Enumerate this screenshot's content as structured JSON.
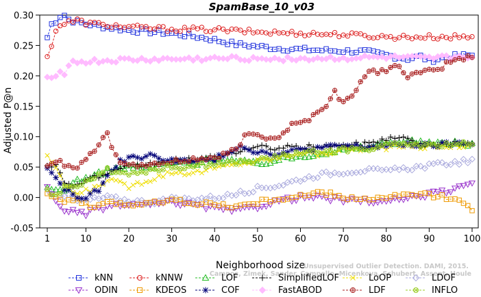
{
  "chart_data": {
    "type": "line",
    "title": "SpamBase_10_v03",
    "xlabel": "Neighborhood size",
    "ylabel": "Adjusted P@n",
    "xlim": [
      1,
      100
    ],
    "ylim": [
      -0.05,
      0.3
    ],
    "xticks": [
      "1",
      "10",
      "20",
      "30",
      "40",
      "50",
      "60",
      "70",
      "80",
      "90",
      "100"
    ],
    "yticks": [
      "-0.05",
      "0.00",
      "0.05",
      "0.10",
      "0.15",
      "0.20",
      "0.25",
      "0.30"
    ],
    "grid": false,
    "legend_position": "bottom",
    "watermark": "Campos, Zimek, Sander, Campello, Micenkova, Schubert, Assent, Houle",
    "watermark_title": "Unsupervised Outlier Detection. DAMI, 2015.",
    "series": [
      {
        "name": "kNN",
        "color": "#2233dd",
        "marker": "square",
        "anchors": [
          [
            1,
            0.263
          ],
          [
            2,
            0.285
          ],
          [
            3,
            0.29
          ],
          [
            4,
            0.298
          ],
          [
            5,
            0.3
          ],
          [
            6,
            0.293
          ],
          [
            8,
            0.288
          ],
          [
            12,
            0.283
          ],
          [
            20,
            0.275
          ],
          [
            30,
            0.27
          ],
          [
            38,
            0.262
          ],
          [
            45,
            0.252
          ],
          [
            55,
            0.245
          ],
          [
            65,
            0.242
          ],
          [
            75,
            0.24
          ],
          [
            85,
            0.228
          ],
          [
            88,
            0.232
          ],
          [
            90,
            0.225
          ],
          [
            95,
            0.232
          ],
          [
            100,
            0.234
          ]
        ]
      },
      {
        "name": "kNNW",
        "color": "#dd2222",
        "marker": "circle",
        "anchors": [
          [
            1,
            0.23
          ],
          [
            2,
            0.252
          ],
          [
            3,
            0.275
          ],
          [
            4,
            0.283
          ],
          [
            6,
            0.288
          ],
          [
            8,
            0.291
          ],
          [
            10,
            0.287
          ],
          [
            20,
            0.28
          ],
          [
            30,
            0.277
          ],
          [
            40,
            0.276
          ],
          [
            50,
            0.272
          ],
          [
            60,
            0.27
          ],
          [
            70,
            0.268
          ],
          [
            80,
            0.264
          ],
          [
            90,
            0.264
          ],
          [
            100,
            0.264
          ]
        ]
      },
      {
        "name": "LOF",
        "color": "#22bb22",
        "marker": "triangle-up",
        "anchors": [
          [
            1,
            0.013
          ],
          [
            5,
            0.012
          ],
          [
            8,
            0.028
          ],
          [
            12,
            0.035
          ],
          [
            15,
            0.045
          ],
          [
            20,
            0.05
          ],
          [
            25,
            0.048
          ],
          [
            30,
            0.058
          ],
          [
            35,
            0.055
          ],
          [
            40,
            0.065
          ],
          [
            45,
            0.06
          ],
          [
            50,
            0.055
          ],
          [
            55,
            0.062
          ],
          [
            60,
            0.068
          ],
          [
            65,
            0.073
          ],
          [
            70,
            0.078
          ],
          [
            75,
            0.082
          ],
          [
            80,
            0.09
          ],
          [
            85,
            0.093
          ],
          [
            90,
            0.088
          ],
          [
            95,
            0.09
          ],
          [
            100,
            0.088
          ]
        ]
      },
      {
        "name": "SimplifiedLOF",
        "color": "#000000",
        "marker": "plus",
        "anchors": [
          [
            1,
            0.055
          ],
          [
            3,
            0.052
          ],
          [
            5,
            0.025
          ],
          [
            8,
            0.02
          ],
          [
            10,
            0.03
          ],
          [
            15,
            0.038
          ],
          [
            20,
            0.05
          ],
          [
            25,
            0.055
          ],
          [
            30,
            0.06
          ],
          [
            35,
            0.062
          ],
          [
            40,
            0.065
          ],
          [
            45,
            0.075
          ],
          [
            50,
            0.082
          ],
          [
            55,
            0.082
          ],
          [
            60,
            0.082
          ],
          [
            65,
            0.085
          ],
          [
            70,
            0.085
          ],
          [
            75,
            0.088
          ],
          [
            80,
            0.096
          ],
          [
            82,
            0.101
          ],
          [
            85,
            0.095
          ],
          [
            90,
            0.085
          ],
          [
            95,
            0.09
          ],
          [
            100,
            0.087
          ]
        ]
      },
      {
        "name": "LoOP",
        "color": "#eedd00",
        "marker": "x",
        "anchors": [
          [
            1,
            0.07
          ],
          [
            3,
            0.045
          ],
          [
            5,
            0.02
          ],
          [
            8,
            0.005
          ],
          [
            12,
            0.015
          ],
          [
            15,
            0.03
          ],
          [
            20,
            0.018
          ],
          [
            25,
            0.03
          ],
          [
            30,
            0.042
          ],
          [
            35,
            0.04
          ],
          [
            40,
            0.048
          ],
          [
            45,
            0.055
          ],
          [
            50,
            0.06
          ],
          [
            55,
            0.065
          ],
          [
            60,
            0.075
          ],
          [
            65,
            0.07
          ],
          [
            70,
            0.08
          ],
          [
            75,
            0.08
          ],
          [
            80,
            0.082
          ],
          [
            85,
            0.085
          ],
          [
            90,
            0.083
          ],
          [
            95,
            0.085
          ],
          [
            100,
            0.085
          ]
        ]
      },
      {
        "name": "LDOF",
        "color": "#aaaadd",
        "marker": "diamond",
        "anchors": [
          [
            1,
            0.012
          ],
          [
            5,
            0.004
          ],
          [
            8,
            -0.006
          ],
          [
            12,
            -0.003
          ],
          [
            15,
            0.0
          ],
          [
            20,
            -0.005
          ],
          [
            25,
            -0.008
          ],
          [
            30,
            -0.003
          ],
          [
            35,
            -0.002
          ],
          [
            40,
            0.0
          ],
          [
            45,
            0.005
          ],
          [
            50,
            0.015
          ],
          [
            55,
            0.02
          ],
          [
            60,
            0.03
          ],
          [
            65,
            0.038
          ],
          [
            70,
            0.042
          ],
          [
            75,
            0.045
          ],
          [
            80,
            0.043
          ],
          [
            85,
            0.048
          ],
          [
            90,
            0.052
          ],
          [
            95,
            0.057
          ],
          [
            100,
            0.06
          ]
        ]
      },
      {
        "name": "ODIN",
        "color": "#9933cc",
        "marker": "triangle-down",
        "anchors": [
          [
            1,
            0.015
          ],
          [
            3,
            -0.005
          ],
          [
            5,
            -0.02
          ],
          [
            8,
            -0.025
          ],
          [
            10,
            -0.028
          ],
          [
            12,
            -0.02
          ],
          [
            15,
            -0.015
          ],
          [
            20,
            -0.012
          ],
          [
            25,
            -0.012
          ],
          [
            30,
            -0.008
          ],
          [
            35,
            -0.012
          ],
          [
            40,
            -0.018
          ],
          [
            45,
            -0.022
          ],
          [
            50,
            -0.015
          ],
          [
            55,
            -0.005
          ],
          [
            60,
            0.0
          ],
          [
            65,
            0.0
          ],
          [
            70,
            -0.005
          ],
          [
            75,
            -0.005
          ],
          [
            80,
            -0.008
          ],
          [
            85,
            0.0
          ],
          [
            90,
            0.005
          ],
          [
            95,
            0.012
          ],
          [
            100,
            0.02
          ]
        ]
      },
      {
        "name": "KDEOS",
        "color": "#ee9900",
        "marker": "square",
        "anchors": [
          [
            1,
            0.01
          ],
          [
            3,
            0.0
          ],
          [
            5,
            -0.005
          ],
          [
            8,
            -0.002
          ],
          [
            10,
            -0.012
          ],
          [
            12,
            -0.02
          ],
          [
            15,
            -0.005
          ],
          [
            20,
            -0.012
          ],
          [
            25,
            -0.01
          ],
          [
            30,
            -0.005
          ],
          [
            35,
            -0.008
          ],
          [
            40,
            -0.012
          ],
          [
            45,
            -0.015
          ],
          [
            50,
            -0.008
          ],
          [
            55,
            -0.002
          ],
          [
            60,
            0.002
          ],
          [
            65,
            0.008
          ],
          [
            70,
            0.0
          ],
          [
            75,
            -0.002
          ],
          [
            80,
            -0.002
          ],
          [
            85,
            0.005
          ],
          [
            90,
            0.003
          ],
          [
            95,
            0.0
          ],
          [
            100,
            -0.018
          ]
        ]
      },
      {
        "name": "COF",
        "color": "#000077",
        "marker": "asterisk",
        "anchors": [
          [
            1,
            0.05
          ],
          [
            3,
            0.03
          ],
          [
            5,
            0.015
          ],
          [
            8,
            0.0
          ],
          [
            10,
            -0.002
          ],
          [
            12,
            0.008
          ],
          [
            14,
            0.02
          ],
          [
            16,
            0.045
          ],
          [
            18,
            0.06
          ],
          [
            20,
            0.065
          ],
          [
            25,
            0.068
          ],
          [
            30,
            0.062
          ],
          [
            35,
            0.058
          ],
          [
            40,
            0.062
          ],
          [
            43,
            0.075
          ],
          [
            46,
            0.085
          ],
          [
            50,
            0.075
          ],
          [
            55,
            0.072
          ],
          [
            60,
            0.078
          ],
          [
            65,
            0.082
          ],
          [
            70,
            0.085
          ],
          [
            75,
            0.083
          ],
          [
            80,
            0.085
          ],
          [
            85,
            0.088
          ],
          [
            90,
            0.085
          ],
          [
            95,
            0.088
          ],
          [
            100,
            0.09
          ]
        ]
      },
      {
        "name": "FastABOD",
        "color": "#ffbbff",
        "marker": "diamond-filled",
        "anchors": [
          [
            1,
            0.198
          ],
          [
            2,
            0.2
          ],
          [
            3,
            0.203
          ],
          [
            4,
            0.205
          ],
          [
            5,
            0.205
          ],
          [
            6,
            0.22
          ],
          [
            7,
            0.222
          ],
          [
            10,
            0.223
          ],
          [
            20,
            0.226
          ],
          [
            30,
            0.227
          ],
          [
            40,
            0.228
          ],
          [
            50,
            0.229
          ],
          [
            60,
            0.228
          ],
          [
            70,
            0.229
          ],
          [
            80,
            0.23
          ],
          [
            90,
            0.228
          ],
          [
            100,
            0.233
          ]
        ]
      },
      {
        "name": "LDF",
        "color": "#aa2222",
        "marker": "circle-cross",
        "anchors": [
          [
            1,
            0.05
          ],
          [
            3,
            0.06
          ],
          [
            5,
            0.055
          ],
          [
            8,
            0.05
          ],
          [
            10,
            0.06
          ],
          [
            12,
            0.08
          ],
          [
            14,
            0.095
          ],
          [
            15,
            0.108
          ],
          [
            16,
            0.085
          ],
          [
            18,
            0.06
          ],
          [
            20,
            0.05
          ],
          [
            25,
            0.055
          ],
          [
            30,
            0.058
          ],
          [
            35,
            0.063
          ],
          [
            40,
            0.065
          ],
          [
            43,
            0.072
          ],
          [
            45,
            0.08
          ],
          [
            47,
            0.1
          ],
          [
            49,
            0.105
          ],
          [
            52,
            0.1
          ],
          [
            55,
            0.1
          ],
          [
            58,
            0.12
          ],
          [
            61,
            0.125
          ],
          [
            64,
            0.14
          ],
          [
            67,
            0.16
          ],
          [
            68,
            0.175
          ],
          [
            70,
            0.155
          ],
          [
            72,
            0.17
          ],
          [
            74,
            0.19
          ],
          [
            76,
            0.205
          ],
          [
            80,
            0.21
          ],
          [
            83,
            0.215
          ],
          [
            85,
            0.2
          ],
          [
            88,
            0.205
          ],
          [
            92,
            0.21
          ],
          [
            95,
            0.225
          ],
          [
            100,
            0.232
          ]
        ]
      },
      {
        "name": "INFLO",
        "color": "#99cc22",
        "marker": "circle-x",
        "anchors": [
          [
            1,
            0.01
          ],
          [
            3,
            0.005
          ],
          [
            5,
            0.015
          ],
          [
            8,
            0.02
          ],
          [
            12,
            0.035
          ],
          [
            15,
            0.045
          ],
          [
            20,
            0.04
          ],
          [
            25,
            0.045
          ],
          [
            30,
            0.05
          ],
          [
            35,
            0.052
          ],
          [
            40,
            0.055
          ],
          [
            45,
            0.058
          ],
          [
            50,
            0.06
          ],
          [
            55,
            0.068
          ],
          [
            60,
            0.072
          ],
          [
            65,
            0.075
          ],
          [
            70,
            0.078
          ],
          [
            75,
            0.08
          ],
          [
            80,
            0.085
          ],
          [
            85,
            0.088
          ],
          [
            90,
            0.085
          ],
          [
            95,
            0.088
          ],
          [
            100,
            0.088
          ]
        ]
      }
    ]
  }
}
